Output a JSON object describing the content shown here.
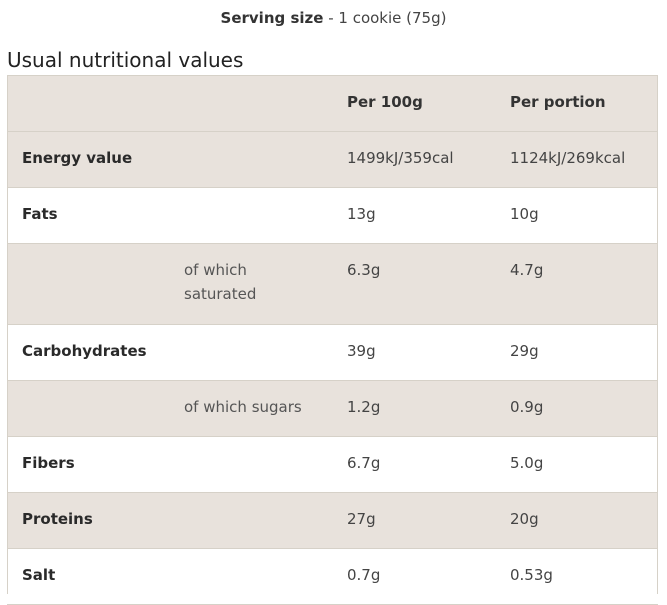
{
  "serving": {
    "label": "Serving size",
    "separator": " - ",
    "value": "1 cookie (75g)"
  },
  "title": "Usual nutritional values",
  "table": {
    "headers": [
      "",
      "",
      "Per 100g",
      "Per portion"
    ],
    "rows": [
      {
        "name": "Energy value",
        "sub": "",
        "per100": "1499kJ/359cal",
        "portion": "1124kJ/269kcal"
      },
      {
        "name": "Fats",
        "sub": "",
        "per100": "13g",
        "portion": "10g"
      },
      {
        "name": "",
        "sub": "of which saturated",
        "per100": "6.3g",
        "portion": "4.7g"
      },
      {
        "name": "Carbohydrates",
        "sub": "",
        "per100": "39g",
        "portion": "29g"
      },
      {
        "name": "",
        "sub": "of which sugars",
        "per100": "1.2g",
        "portion": "0.9g"
      },
      {
        "name": "Fibers",
        "sub": "",
        "per100": "6.7g",
        "portion": "5.0g"
      },
      {
        "name": "Proteins",
        "sub": "",
        "per100": "27g",
        "portion": "20g"
      },
      {
        "name": "Salt",
        "sub": "",
        "per100": "0.7g",
        "portion": "0.53g"
      }
    ]
  },
  "colors": {
    "shaded_row": "#e8e2dc",
    "border": "#d6d1c8"
  }
}
